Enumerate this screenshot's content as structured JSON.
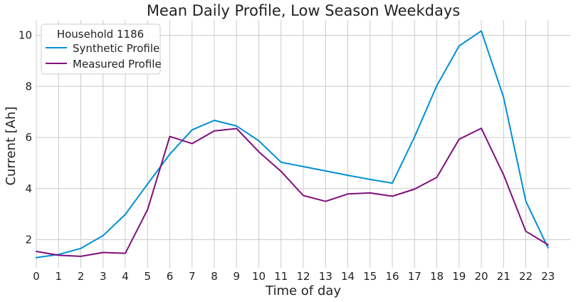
{
  "chart_data": {
    "type": "line",
    "title": "Mean Daily Profile, Low Season Weekdays",
    "xlabel": "Time of day",
    "ylabel": "Current [Ah]",
    "x": [
      0,
      1,
      2,
      3,
      4,
      5,
      6,
      7,
      8,
      9,
      10,
      11,
      12,
      13,
      14,
      15,
      16,
      17,
      18,
      19,
      20,
      21,
      22,
      23
    ],
    "xlim": [
      0,
      24
    ],
    "ylim": [
      0.9,
      10.6
    ],
    "yticks": [
      2,
      4,
      6,
      8,
      10
    ],
    "grid": true,
    "legend": {
      "title": "Household 1186",
      "placement": "top-left"
    },
    "series": [
      {
        "name": "Synthetic Profile",
        "color": "#008fd5",
        "values": [
          1.3,
          1.42,
          1.66,
          2.16,
          2.99,
          4.18,
          5.35,
          6.3,
          6.67,
          6.45,
          5.87,
          5.03,
          4.86,
          4.69,
          4.52,
          4.36,
          4.21,
          6.03,
          8.03,
          9.58,
          10.17,
          7.57,
          3.51,
          1.68
        ]
      },
      {
        "name": "Measured Profile",
        "color": "#810f7c",
        "values": [
          1.54,
          1.39,
          1.35,
          1.5,
          1.47,
          3.18,
          6.04,
          5.76,
          6.26,
          6.35,
          5.44,
          4.67,
          3.73,
          3.5,
          3.79,
          3.83,
          3.7,
          3.98,
          4.44,
          5.93,
          6.36,
          4.54,
          2.33,
          1.8
        ]
      }
    ]
  }
}
